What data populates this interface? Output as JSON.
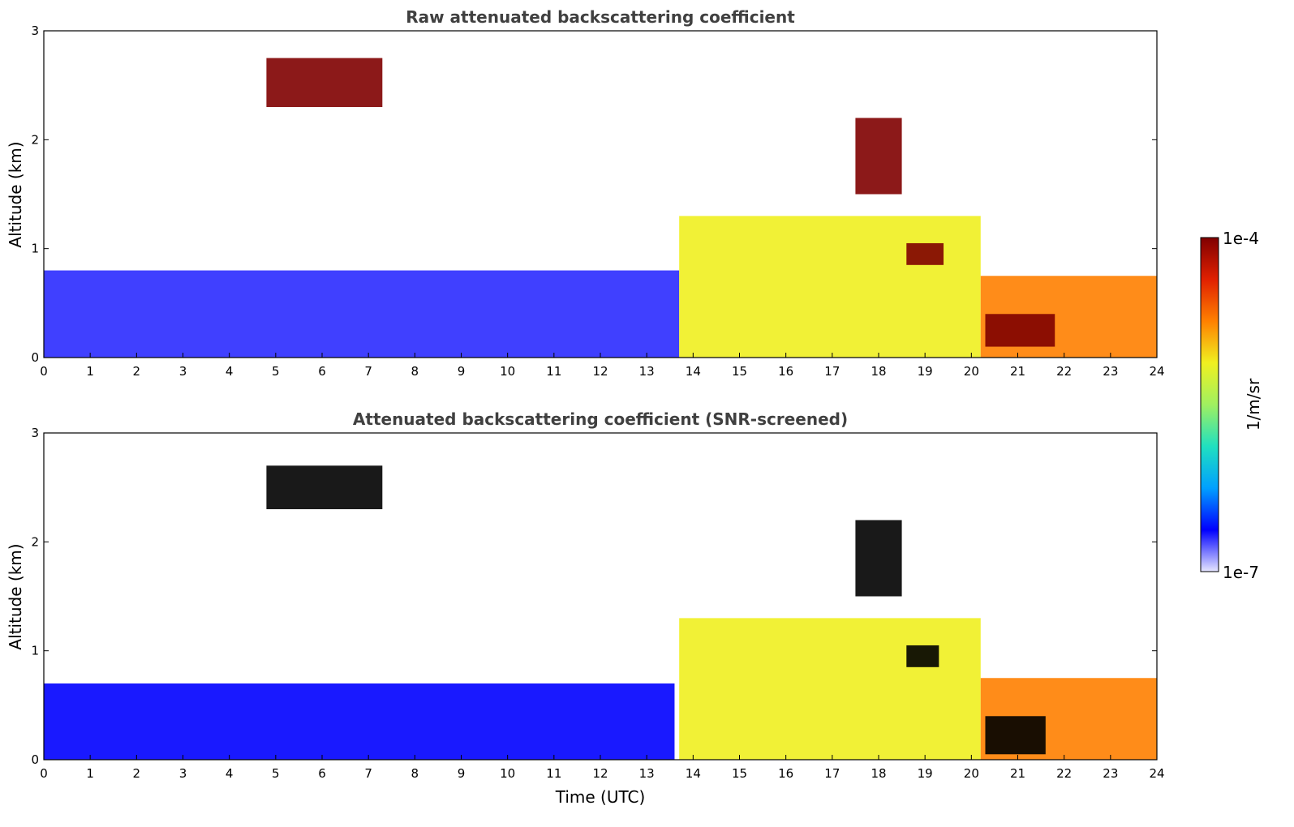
{
  "chart_data": [
    {
      "type": "heatmap",
      "title": "Raw attenuated backscattering coefficient",
      "xlabel": "",
      "ylabel": "Altitude (km)",
      "xlim": [
        0,
        24
      ],
      "ylim": [
        0,
        3
      ],
      "x_ticks": [
        "0",
        "1",
        "2",
        "3",
        "4",
        "5",
        "6",
        "7",
        "8",
        "9",
        "10",
        "11",
        "12",
        "13",
        "14",
        "15",
        "16",
        "17",
        "18",
        "19",
        "20",
        "21",
        "22",
        "23",
        "24"
      ],
      "y_ticks": [
        "0",
        "1",
        "2",
        "3"
      ],
      "features": [
        {
          "kind": "noise_boundary_layer",
          "x": [
            0,
            13.7
          ],
          "y": [
            0,
            0.8
          ],
          "level": 0.1
        },
        {
          "kind": "aerosol_boundary_layer",
          "x": [
            13.7,
            20.2
          ],
          "y": [
            0,
            1.3
          ],
          "level": 0.65
        },
        {
          "kind": "boundary_layer_warm",
          "x": [
            20.2,
            24
          ],
          "y": [
            0,
            0.75
          ],
          "level": 0.75
        },
        {
          "kind": "cloud_layer",
          "x": [
            4.8,
            7.3
          ],
          "y": [
            2.3,
            2.75
          ],
          "level": 0.95
        },
        {
          "kind": "cloud_layer",
          "x": [
            17.5,
            18.5
          ],
          "y": [
            1.5,
            2.2
          ],
          "level": 0.95
        },
        {
          "kind": "cloud_layer",
          "x": [
            18.6,
            19.4
          ],
          "y": [
            0.85,
            1.05
          ],
          "level": 0.95
        },
        {
          "kind": "cloud_layer",
          "x": [
            20.3,
            21.8
          ],
          "y": [
            0.1,
            0.4
          ],
          "level": 0.95
        }
      ]
    },
    {
      "type": "heatmap",
      "title": "Attenuated backscattering coefficient (SNR-screened)",
      "xlabel": "Time (UTC)",
      "ylabel": "Altitude (km)",
      "xlim": [
        0,
        24
      ],
      "ylim": [
        0,
        3
      ],
      "x_ticks": [
        "0",
        "1",
        "2",
        "3",
        "4",
        "5",
        "6",
        "7",
        "8",
        "9",
        "10",
        "11",
        "12",
        "13",
        "14",
        "15",
        "16",
        "17",
        "18",
        "19",
        "20",
        "21",
        "22",
        "23",
        "24"
      ],
      "y_ticks": [
        "0",
        "1",
        "2",
        "3"
      ],
      "features": [
        {
          "kind": "screened_boundary_layer",
          "x": [
            0,
            13.6
          ],
          "y": [
            0,
            0.7
          ],
          "level": 0.08
        },
        {
          "kind": "aerosol_boundary_layer",
          "x": [
            13.7,
            20.2
          ],
          "y": [
            0,
            1.3
          ],
          "level": 0.65
        },
        {
          "kind": "boundary_layer_warm",
          "x": [
            20.2,
            24
          ],
          "y": [
            0,
            0.75
          ],
          "level": 0.75
        },
        {
          "kind": "saturated_cloud",
          "x": [
            4.8,
            7.3
          ],
          "y": [
            2.3,
            2.7
          ],
          "level": 1.0
        },
        {
          "kind": "saturated_cloud",
          "x": [
            17.5,
            18.5
          ],
          "y": [
            1.5,
            2.2
          ],
          "level": 1.0
        },
        {
          "kind": "saturated_cloud",
          "x": [
            18.6,
            19.3
          ],
          "y": [
            0.85,
            1.05
          ],
          "level": 1.0
        },
        {
          "kind": "saturated_cloud",
          "x": [
            20.3,
            21.6
          ],
          "y": [
            0.05,
            0.4
          ],
          "level": 1.0
        }
      ]
    }
  ],
  "colorbar": {
    "label": "1/m/sr",
    "max_label": "1e-4",
    "min_label": "1e-7",
    "colormap": [
      "#e6e6ff",
      "#0000ff",
      "#00a0ff",
      "#20e0c0",
      "#a0f060",
      "#f0f020",
      "#ff8000",
      "#e02000",
      "#800000"
    ]
  }
}
